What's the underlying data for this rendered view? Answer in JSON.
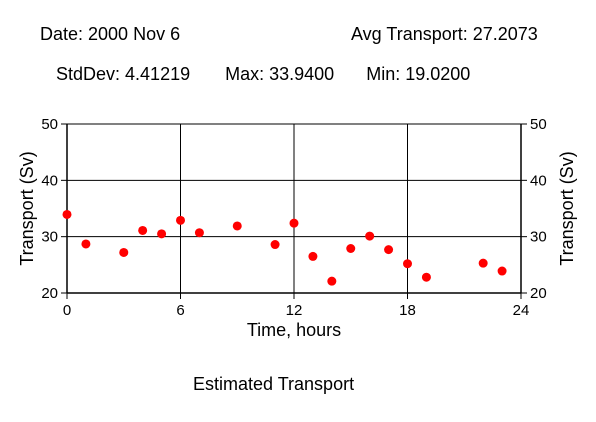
{
  "header": {
    "date": "Date: 2000 Nov 6",
    "avg": "Avg Transport: 27.2073",
    "stddev": "StdDev: 4.41219",
    "max": "Max: 33.9400",
    "min": "Min: 19.0200"
  },
  "caption": "Estimated Transport",
  "colors": {
    "point": "#ff0000",
    "axis": "#000000",
    "grid": "#000000"
  },
  "chart_data": {
    "type": "scatter",
    "title": "Estimated Transport",
    "xlabel": "Time, hours",
    "ylabel": "Transport (Sv)",
    "y2label": "Transport (Sv)",
    "xlim": [
      0,
      24
    ],
    "ylim": [
      20,
      50
    ],
    "xticks": [
      0,
      6,
      12,
      18,
      24
    ],
    "yticks": [
      20,
      30,
      40,
      50
    ],
    "grid": true,
    "series": [
      {
        "x": [
          0,
          1,
          3,
          4,
          5,
          6,
          7,
          9,
          11,
          12,
          13,
          14,
          15,
          16,
          17,
          18,
          19,
          22,
          23
        ],
        "y": [
          33.94,
          28.7,
          27.2,
          31.1,
          30.5,
          32.9,
          30.7,
          31.9,
          28.6,
          32.4,
          26.5,
          22.1,
          27.9,
          30.1,
          27.7,
          25.2,
          22.8,
          25.3,
          23.9
        ]
      }
    ]
  }
}
